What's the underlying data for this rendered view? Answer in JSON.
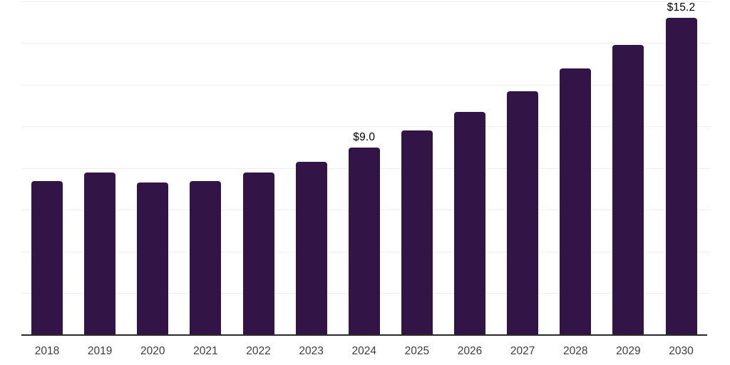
{
  "chart": {
    "colors": {
      "background": "#ffffff",
      "bar": "#331447",
      "gridline": "#efefef",
      "axis_line": "#2b2b2b",
      "data_label": "#000000",
      "tick_label": "#3d3d3d"
    }
  },
  "chart_data": {
    "type": "bar",
    "title": "",
    "xlabel": "",
    "ylabel": "",
    "categories": [
      "2018",
      "2019",
      "2020",
      "2021",
      "2022",
      "2023",
      "2024",
      "2025",
      "2026",
      "2027",
      "2028",
      "2029",
      "2030"
    ],
    "values": [
      7.4,
      7.8,
      7.3,
      7.4,
      7.8,
      8.3,
      9.0,
      9.8,
      10.7,
      11.7,
      12.8,
      13.9,
      15.2
    ],
    "data_labels": [
      "",
      "",
      "",
      "",
      "",
      "",
      "$9.0",
      "",
      "",
      "",
      "",
      "",
      "$15.2"
    ],
    "unit_prefix": "$",
    "ylim": [
      0,
      16
    ],
    "grid_step": 2,
    "grid": true,
    "legend": false,
    "y_axis_labels_shown": false
  }
}
